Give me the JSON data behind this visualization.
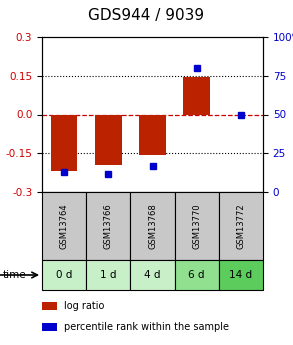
{
  "title": "GDS944 / 9039",
  "samples": [
    "GSM13764",
    "GSM13766",
    "GSM13768",
    "GSM13770",
    "GSM13772"
  ],
  "time_labels": [
    "0 d",
    "1 d",
    "4 d",
    "6 d",
    "14 d"
  ],
  "time_colors": [
    "#c8f0c8",
    "#c8f0c8",
    "#c8f0c8",
    "#90e090",
    "#5ccc5c"
  ],
  "log_ratios": [
    -0.22,
    -0.195,
    -0.155,
    0.145,
    0.0
  ],
  "percentile_ranks": [
    0.13,
    0.115,
    0.17,
    0.8,
    0.5
  ],
  "ylim": [
    -0.3,
    0.3
  ],
  "yticks_left": [
    -0.3,
    -0.15,
    0.0,
    0.15,
    0.3
  ],
  "yticks_right_vals": [
    0,
    25,
    50,
    75,
    100
  ],
  "bar_color": "#bb2200",
  "dot_color": "#0000cc",
  "zero_line_color": "#cc0000",
  "header_bg": "#c8c8c8",
  "title_fontsize": 11,
  "tick_fontsize": 7.5,
  "sample_fontsize": 6,
  "time_fontsize": 7.5
}
